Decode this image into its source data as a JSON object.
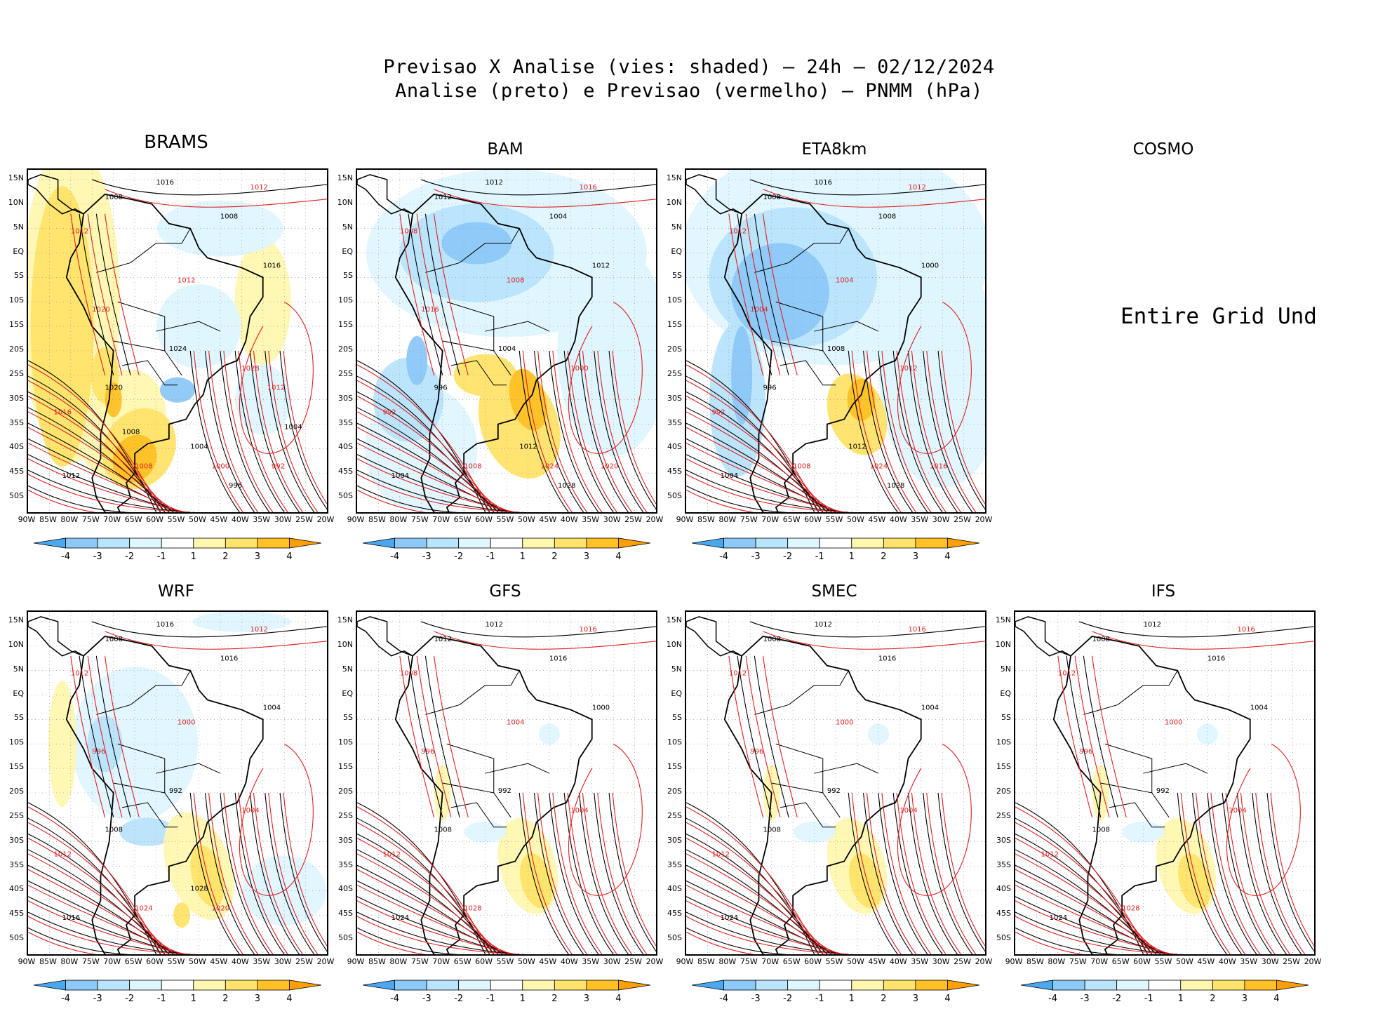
{
  "header": {
    "line1": "Previsao X Analise (vies: shaded) — 24h — 02/12/2024",
    "line2": "Analise (preto) e Previsao (vermelho) — PNMM (hPa)"
  },
  "colors": {
    "neg4": "#4aa8f0",
    "neg3": "#8cc8f8",
    "neg2": "#b8e4fc",
    "neg1": "#dff6ff",
    "zero": "#ffffff",
    "pos1": "#fff7b0",
    "pos2": "#ffe36a",
    "pos3": "#ffc126",
    "pos4": "#ff9f00",
    "analysis_contour": "#000000",
    "forecast_contour": "#e02020"
  },
  "lat_labels": [
    "15N",
    "10N",
    "5N",
    "EQ",
    "5S",
    "10S",
    "15S",
    "20S",
    "25S",
    "30S",
    "35S",
    "40S",
    "45S",
    "50S"
  ],
  "lon_labels": [
    "90W",
    "85W",
    "80W",
    "75W",
    "70W",
    "65W",
    "60W",
    "55W",
    "50W",
    "45W",
    "40W",
    "35W",
    "30W",
    "25W",
    "20W"
  ],
  "colorbar_ticks": [
    "-4",
    "-3",
    "-2",
    "-1",
    "1",
    "2",
    "3",
    "4"
  ],
  "panels": [
    {
      "name": "BRAMS",
      "row": 0,
      "col": 0,
      "title_size": "big",
      "bias": "warm",
      "labels": [
        "1016",
        "1012",
        "1008",
        "1012",
        "1008",
        "1012",
        "1016",
        "1020",
        "1024",
        "1028",
        "1020",
        "1016",
        "1012",
        "1008",
        "1004",
        "1000",
        "996",
        "992",
        "1004",
        "1012",
        "1008"
      ]
    },
    {
      "name": "BAM",
      "row": 0,
      "col": 1,
      "bias": "cool",
      "labels": [
        "1012",
        "1016",
        "1012",
        "1008",
        "1004",
        "1008",
        "1012",
        "1016",
        "1004",
        "1000",
        "996",
        "992",
        "1004",
        "1008",
        "1012",
        "1024",
        "1028",
        "1020"
      ]
    },
    {
      "name": "ETA8km",
      "row": 0,
      "col": 2,
      "bias": "cool-strong",
      "labels": [
        "1016",
        "1012",
        "1008",
        "1012",
        "1008",
        "1004",
        "1000",
        "1004",
        "1008",
        "1012",
        "996",
        "992",
        "1004",
        "1008",
        "1012",
        "1024",
        "1028",
        "1016"
      ]
    },
    {
      "name": "COSMO",
      "row": 0,
      "col": 3,
      "undefined": "Entire Grid Und"
    },
    {
      "name": "WRF",
      "row": 1,
      "col": 0,
      "bias": "mixed",
      "labels": [
        "1016",
        "1012",
        "1008",
        "1012",
        "1016",
        "1000",
        "1004",
        "996",
        "992",
        "1004",
        "1008",
        "1012",
        "1016",
        "1024",
        "1028",
        "1020"
      ]
    },
    {
      "name": "GFS",
      "row": 1,
      "col": 1,
      "bias": "light",
      "labels": [
        "1012",
        "1016",
        "1012",
        "1008",
        "1016",
        "1004",
        "1000",
        "996",
        "992",
        "1004",
        "1008",
        "1012",
        "1024",
        "1028"
      ]
    },
    {
      "name": "SMEC",
      "row": 1,
      "col": 2,
      "bias": "light",
      "labels": [
        "1012",
        "1016",
        "1008",
        "1012",
        "1016",
        "1000",
        "1004",
        "996",
        "992",
        "1004",
        "1008",
        "1012",
        "1024"
      ]
    },
    {
      "name": "IFS",
      "row": 1,
      "col": 3,
      "bias": "light",
      "labels": [
        "1012",
        "1016",
        "1008",
        "1012",
        "1016",
        "1000",
        "1004",
        "996",
        "992",
        "1004",
        "1008",
        "1012",
        "1024",
        "1028"
      ]
    }
  ]
}
